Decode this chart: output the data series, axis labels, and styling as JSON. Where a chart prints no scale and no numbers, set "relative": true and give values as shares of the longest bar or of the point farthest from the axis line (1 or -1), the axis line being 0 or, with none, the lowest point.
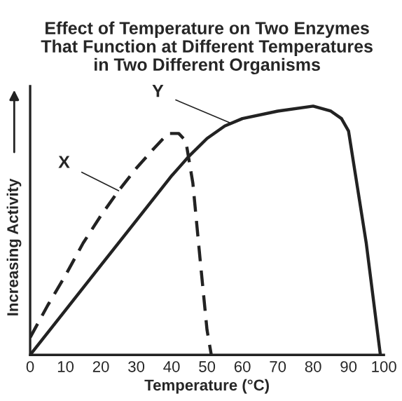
{
  "chart_data": {
    "type": "line",
    "title": "Effect of Temperature on Two Enzymes\nThat Function at Different Temperatures\nin Two Different Organisms",
    "xlabel": "Temperature (°C)",
    "ylabel": "Increasing Activity",
    "relative": true,
    "xlim": [
      0,
      100
    ],
    "xticks": [
      0,
      10,
      20,
      30,
      40,
      50,
      60,
      70,
      80,
      90,
      100
    ],
    "grid": false,
    "legend": false,
    "marker": "none",
    "series": [
      {
        "color": "#222222",
        "line_style": "dashed",
        "x": [
          0,
          5,
          10,
          15,
          20,
          25,
          30,
          35,
          39,
          42,
          44,
          46,
          48,
          50,
          51.2
        ],
        "values": [
          0.07,
          0.2,
          0.32,
          0.45,
          0.56,
          0.66,
          0.75,
          0.83,
          0.89,
          0.89,
          0.86,
          0.69,
          0.39,
          0.1,
          0
        ]
      },
      {
        "color": "#222222",
        "line_style": "solid",
        "x": [
          0,
          10,
          20,
          30,
          40,
          45,
          50,
          55,
          60,
          70,
          80,
          85,
          88,
          90,
          95,
          99
        ],
        "values": [
          0,
          0.18,
          0.36,
          0.54,
          0.72,
          0.8,
          0.87,
          0.92,
          0.95,
          0.98,
          1.0,
          0.98,
          0.95,
          0.9,
          0.45,
          0
        ]
      }
    ],
    "annotations": [
      {
        "text": "X",
        "x": 25,
        "y": 0.66
      },
      {
        "text": "Y",
        "x": 57,
        "y": 0.93
      }
    ]
  }
}
